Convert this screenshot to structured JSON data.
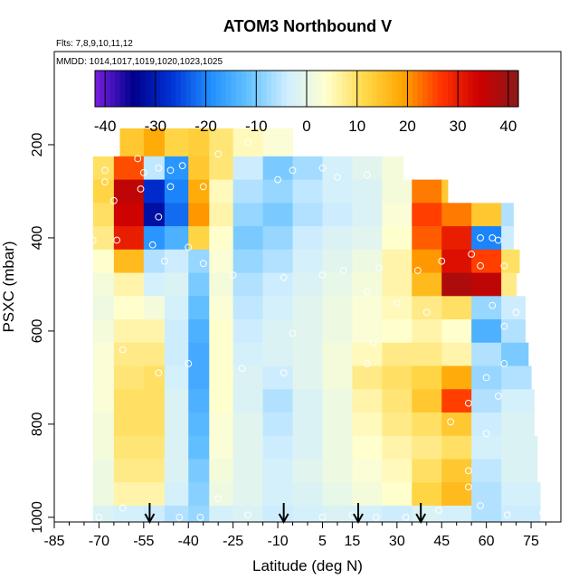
{
  "chart_data": {
    "type": "heatmap",
    "title": "ATOM3 Northbound V",
    "flights_label": "Flts: 7,8,9,10,11,12",
    "dates_label": "MMDD: 1014,1017,1019,1020,1023,1025",
    "xlabel": "Latitude (deg N)",
    "ylabel": "PSXC (mbar)",
    "xlim": [
      -85,
      85
    ],
    "ylim": [
      1010,
      0
    ],
    "x_ticks": [
      "-85",
      "-70",
      "-55",
      "-40",
      "-25",
      "-10",
      "5",
      "15",
      "30",
      "45",
      "60",
      "75"
    ],
    "x_tick_values": [
      -85,
      -70,
      -55,
      -40,
      -25,
      -10,
      5,
      15,
      30,
      45,
      60,
      75
    ],
    "y_ticks": [
      "200",
      "400",
      "600",
      "800",
      "1000"
    ],
    "y_tick_values": [
      200,
      400,
      600,
      800,
      1000
    ],
    "colorbar": {
      "range": [
        -42,
        42
      ],
      "tick_labels": [
        "-40",
        "-30",
        "-20",
        "-10",
        "0",
        "10",
        "20",
        "30",
        "40"
      ],
      "tick_values": [
        -40,
        -30,
        -20,
        -10,
        0,
        10,
        20,
        30,
        40
      ],
      "colors": [
        "#7a1fe0",
        "#00008c",
        "#0033d6",
        "#1f8fff",
        "#66c2ff",
        "#cfeeff",
        "#ffffd0",
        "#ffd94a",
        "#ffa500",
        "#ff3300",
        "#cc0000",
        "#8b1a1a"
      ]
    },
    "profile_arrows_lat": [
      -53,
      -8,
      17,
      38
    ],
    "lat_breaks": [
      -72,
      -65,
      -55,
      -48,
      -40,
      -33,
      -25,
      -15,
      -5,
      5,
      15,
      25,
      35,
      45,
      55,
      65,
      78
    ],
    "levels": [
      {
        "p": 200,
        "lat_range": [
          -63,
          -3
        ],
        "v": [
          null,
          14,
          18,
          12,
          13,
          9,
          5,
          3,
          null,
          null,
          null,
          null,
          null,
          null,
          null,
          null
        ]
      },
      {
        "p": 250,
        "lat_range": [
          -72,
          32
        ],
        "v": [
          10,
          25,
          -5,
          -18,
          14,
          9,
          -4,
          -10,
          -7,
          -3,
          -1,
          2,
          null,
          null,
          null,
          null
        ]
      },
      {
        "p": 300,
        "lat_range": [
          -72,
          47
        ],
        "v": [
          12,
          36,
          -28,
          -20,
          18,
          5,
          -6,
          -8,
          -5,
          -3,
          -2,
          2,
          22,
          14,
          null,
          null
        ]
      },
      {
        "p": 350,
        "lat_range": [
          -73,
          69
        ],
        "v": [
          10,
          34,
          -32,
          -22,
          20,
          6,
          -8,
          -10,
          -6,
          -4,
          -2,
          3,
          26,
          22,
          14,
          -6
        ]
      },
      {
        "p": 400,
        "lat_range": [
          -74,
          69
        ],
        "v": [
          8,
          30,
          -18,
          -14,
          12,
          4,
          -10,
          -8,
          -4,
          -2,
          -1,
          4,
          24,
          30,
          -20,
          -4
        ]
      },
      {
        "p": 450,
        "lat_range": [
          -76,
          71
        ],
        "v": [
          4,
          16,
          -6,
          -4,
          -8,
          3,
          -8,
          -6,
          -3,
          -1,
          1,
          6,
          20,
          32,
          26,
          10
        ]
      },
      {
        "p": 500,
        "lat_range": [
          -78,
          70
        ],
        "v": [
          2,
          6,
          -3,
          -2,
          -10,
          2,
          -6,
          -4,
          -2,
          0,
          2,
          6,
          16,
          38,
          36,
          8
        ]
      },
      {
        "p": 550,
        "lat_range": [
          -77,
          73
        ],
        "v": [
          1,
          4,
          2,
          -3,
          -12,
          3,
          -5,
          -3,
          -1,
          1,
          3,
          5,
          8,
          10,
          -8,
          -4
        ]
      },
      {
        "p": 600,
        "lat_range": [
          -77,
          73
        ],
        "v": [
          2,
          6,
          6,
          -4,
          -14,
          4,
          -4,
          -2,
          -1,
          1,
          3,
          4,
          6,
          4,
          -14,
          -6
        ]
      },
      {
        "p": 650,
        "lat_range": [
          -76,
          74
        ],
        "v": [
          3,
          8,
          8,
          -4,
          -15,
          4,
          -3,
          -2,
          -1,
          2,
          5,
          8,
          8,
          6,
          -6,
          -10
        ]
      },
      {
        "p": 700,
        "lat_range": [
          -75,
          75
        ],
        "v": [
          3,
          9,
          10,
          -3,
          -15,
          4,
          -2,
          -4,
          -1,
          2,
          8,
          10,
          12,
          18,
          -8,
          -6
        ]
      },
      {
        "p": 750,
        "lat_range": [
          -74,
          76
        ],
        "v": [
          3,
          10,
          10,
          -2,
          -14,
          4,
          -2,
          -6,
          -2,
          1,
          6,
          9,
          14,
          26,
          -6,
          -3
        ]
      },
      {
        "p": 800,
        "lat_range": [
          -74,
          76
        ],
        "v": [
          2,
          10,
          10,
          -2,
          -13,
          3,
          -1,
          -5,
          -2,
          1,
          5,
          8,
          10,
          14,
          -4,
          -2
        ]
      },
      {
        "p": 850,
        "lat_range": [
          -74,
          77
        ],
        "v": [
          2,
          9,
          9,
          -2,
          -12,
          3,
          -1,
          -4,
          -2,
          1,
          4,
          6,
          8,
          10,
          -3,
          -2
        ]
      },
      {
        "p": 900,
        "lat_range": [
          -74,
          77
        ],
        "v": [
          1,
          8,
          8,
          -2,
          -10,
          2,
          -1,
          -3,
          -1,
          1,
          3,
          5,
          10,
          14,
          -5,
          -2
        ]
      },
      {
        "p": 950,
        "lat_range": [
          -74,
          78
        ],
        "v": [
          1,
          6,
          6,
          -3,
          -9,
          1,
          -1,
          -3,
          -2,
          0,
          2,
          4,
          12,
          16,
          -6,
          -3
        ]
      },
      {
        "p": 1000,
        "lat_range": [
          -74,
          79
        ],
        "v": [
          -2,
          -3,
          -4,
          -6,
          -8,
          -3,
          -2,
          -4,
          -3,
          -2,
          -3,
          -4,
          -2,
          -3,
          -6,
          -4
        ]
      }
    ],
    "obs_points": [
      [
        -65,
        200
      ],
      [
        -57,
        230
      ],
      [
        -50,
        250
      ],
      [
        -46,
        255
      ],
      [
        -42,
        245
      ],
      [
        -30,
        220
      ],
      [
        -20,
        195
      ],
      [
        -68,
        255
      ],
      [
        -55,
        260
      ],
      [
        -10,
        275
      ],
      [
        -5,
        255
      ],
      [
        5,
        250
      ],
      [
        10,
        270
      ],
      [
        20,
        265
      ],
      [
        -68,
        280
      ],
      [
        -56,
        295
      ],
      [
        -46,
        290
      ],
      [
        -35,
        290
      ],
      [
        -65,
        320
      ],
      [
        -50,
        355
      ],
      [
        -72,
        405
      ],
      [
        -64,
        405
      ],
      [
        -52,
        415
      ],
      [
        -40,
        420
      ],
      [
        -48,
        450
      ],
      [
        -35,
        455
      ],
      [
        -25,
        480
      ],
      [
        -8,
        485
      ],
      [
        5,
        480
      ],
      [
        12,
        470
      ],
      [
        24,
        465
      ],
      [
        37,
        470
      ],
      [
        45,
        450
      ],
      [
        55,
        435
      ],
      [
        58,
        400
      ],
      [
        62,
        400
      ],
      [
        64,
        405
      ],
      [
        58,
        460
      ],
      [
        66,
        460
      ],
      [
        20,
        515
      ],
      [
        30,
        540
      ],
      [
        -75,
        620
      ],
      [
        -62,
        640
      ],
      [
        -5,
        605
      ],
      [
        22,
        625
      ],
      [
        40,
        560
      ],
      [
        62,
        545
      ],
      [
        66,
        590
      ],
      [
        66,
        670
      ],
      [
        -50,
        690
      ],
      [
        -40,
        670
      ],
      [
        -22,
        680
      ],
      [
        -8,
        690
      ],
      [
        20,
        670
      ],
      [
        70,
        560
      ],
      [
        60,
        700
      ],
      [
        54,
        755
      ],
      [
        48,
        795
      ],
      [
        64,
        740
      ],
      [
        60,
        820
      ],
      [
        -30,
        960
      ],
      [
        -43,
        1000
      ],
      [
        -36,
        1000
      ],
      [
        -20,
        995
      ],
      [
        -8,
        1000
      ],
      [
        5,
        1000
      ],
      [
        15,
        995
      ],
      [
        23,
        1000
      ],
      [
        33,
        1000
      ],
      [
        44,
        985
      ],
      [
        58,
        975
      ],
      [
        67,
        995
      ],
      [
        79,
        990
      ],
      [
        -70,
        1000
      ],
      [
        -62,
        980
      ],
      [
        54,
        935
      ],
      [
        54,
        900
      ]
    ]
  }
}
